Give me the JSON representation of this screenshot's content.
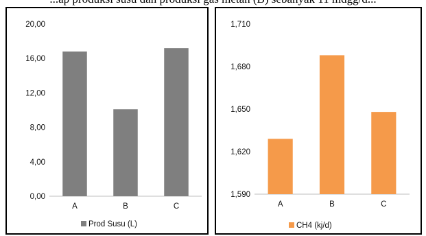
{
  "caption_fragment": "...ap produksi susu dan produksi gas metan (B) sebanyak 11 mdgg/d...",
  "chart_data": [
    {
      "type": "bar",
      "categories": [
        "A",
        "B",
        "C"
      ],
      "series": [
        {
          "name": "Prod Susu (L)",
          "values": [
            16.8,
            10.1,
            17.2
          ]
        }
      ],
      "ylim": [
        0,
        20
      ],
      "yticks": [
        "0,00",
        "4,00",
        "8,00",
        "12,00",
        "16,00",
        "20,00"
      ],
      "ytick_values": [
        0,
        4,
        8,
        12,
        16,
        20
      ],
      "color": "#7f7f7f",
      "legend_position": "bottom",
      "grid": false
    },
    {
      "type": "bar",
      "categories": [
        "A",
        "B",
        "C"
      ],
      "series": [
        {
          "name": "CH4 (kj/d)",
          "values": [
            1.629,
            1.688,
            1.648
          ]
        }
      ],
      "ylim": [
        1.59,
        1.71
      ],
      "yticks": [
        "1,590",
        "1,620",
        "1,650",
        "1,680",
        "1,710"
      ],
      "ytick_values": [
        1.59,
        1.62,
        1.65,
        1.68,
        1.71
      ],
      "color": "#f59a4a",
      "legend_position": "bottom",
      "grid": false
    }
  ]
}
